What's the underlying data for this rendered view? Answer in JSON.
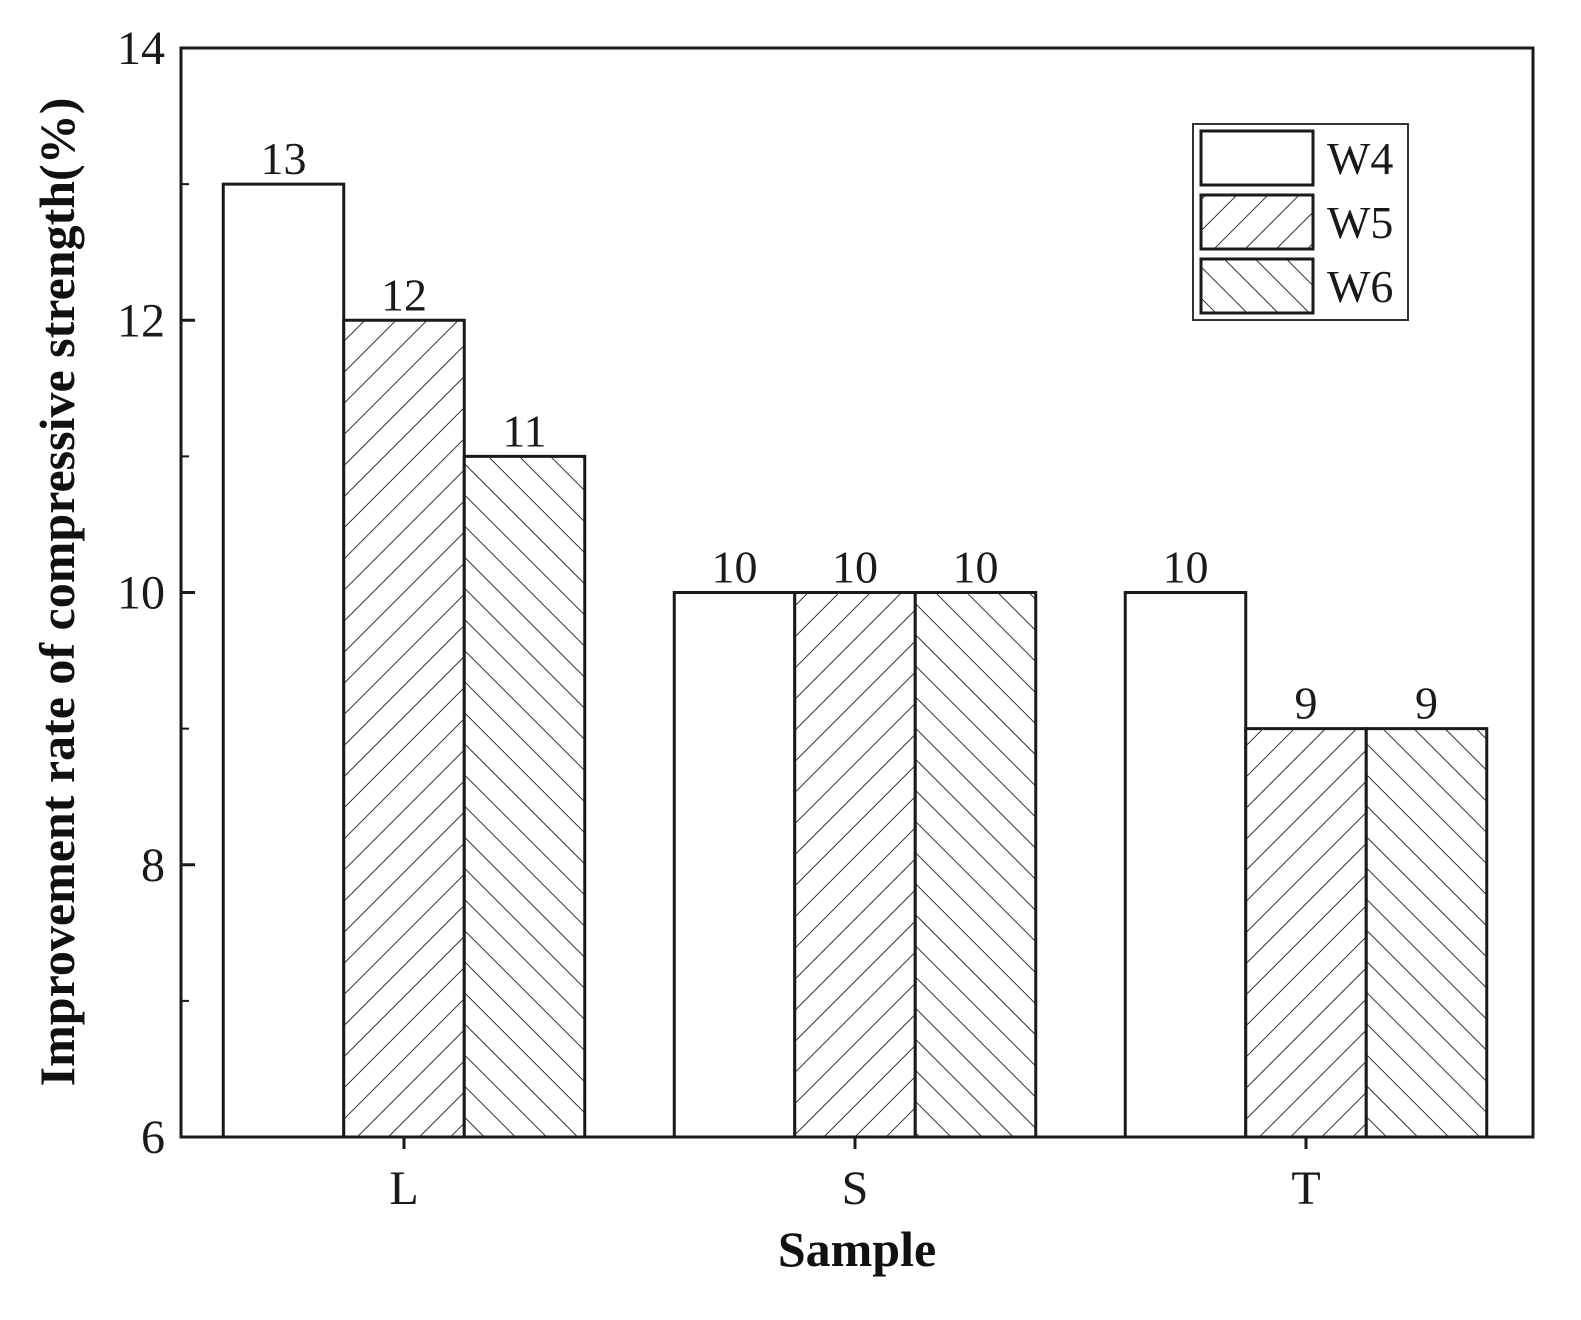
{
  "chart_data": {
    "type": "bar",
    "xlabel": "Sample",
    "ylabel": "Improvement rate of compressive strength(%)",
    "ylim": [
      6,
      14
    ],
    "yticks": [
      6,
      8,
      10,
      12,
      14
    ],
    "categories": [
      "L",
      "S",
      "T"
    ],
    "series": [
      {
        "name": "W4",
        "values": [
          13,
          10,
          10
        ],
        "pattern": "none"
      },
      {
        "name": "W5",
        "values": [
          12,
          10,
          9
        ],
        "pattern": "forward-hatch"
      },
      {
        "name": "W6",
        "values": [
          11,
          10,
          9
        ],
        "pattern": "back-hatch"
      }
    ],
    "data_labels": true,
    "grid": false,
    "legend_position": "top-right",
    "colors": {
      "stroke": "#1a1a1a",
      "fill": "#ffffff",
      "hatch": "#333333"
    }
  }
}
